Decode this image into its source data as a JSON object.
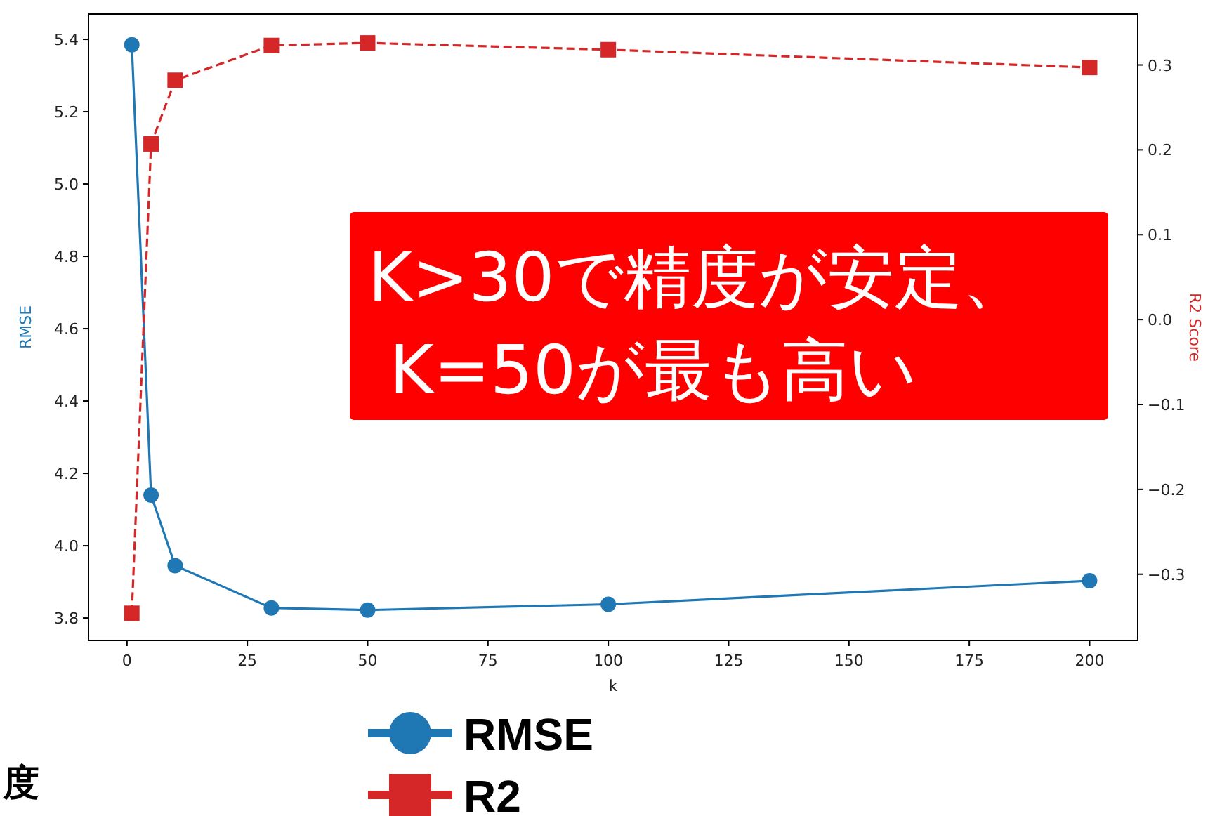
{
  "chart_data": {
    "type": "line",
    "xlabel": "k",
    "ylabel": "RMSE",
    "y2label": "R2 Score",
    "x": [
      1,
      5,
      10,
      30,
      50,
      100,
      200
    ],
    "series": [
      {
        "name": "RMSE",
        "color": "#1f77b4",
        "values": [
          5.385,
          4.14,
          3.945,
          3.828,
          3.822,
          3.838,
          3.903
        ],
        "marker": "circle",
        "line_style": "solid"
      },
      {
        "name": "R2",
        "color": "#d62728",
        "values": [
          -0.346,
          0.207,
          0.282,
          0.323,
          0.326,
          0.318,
          0.297
        ],
        "axis": "y2",
        "marker": "square",
        "line_style": "dashed"
      }
    ],
    "xlim": [
      -8,
      210
    ],
    "xticks": [
      0,
      25,
      50,
      75,
      100,
      125,
      150,
      175,
      200
    ],
    "ylim": [
      3.738,
      5.47
    ],
    "yticks": [
      3.8,
      {
        "value": 4,
        "label": "4.0"
      },
      4.2,
      4.4,
      4.6,
      4.8,
      {
        "value": 5,
        "label": "5.0"
      },
      5.2,
      5.4
    ],
    "y2lim": [
      -0.378,
      0.36
    ],
    "y2ticks": [
      -0.3,
      -0.2,
      -0.1,
      {
        "value": 0,
        "label": "0.0"
      },
      0.1,
      0.2,
      0.3
    ],
    "legend": "bottom",
    "grid": false,
    "annotations": [
      "K>30で精度が安定、\n K=50が最も高い",
      "度"
    ]
  }
}
